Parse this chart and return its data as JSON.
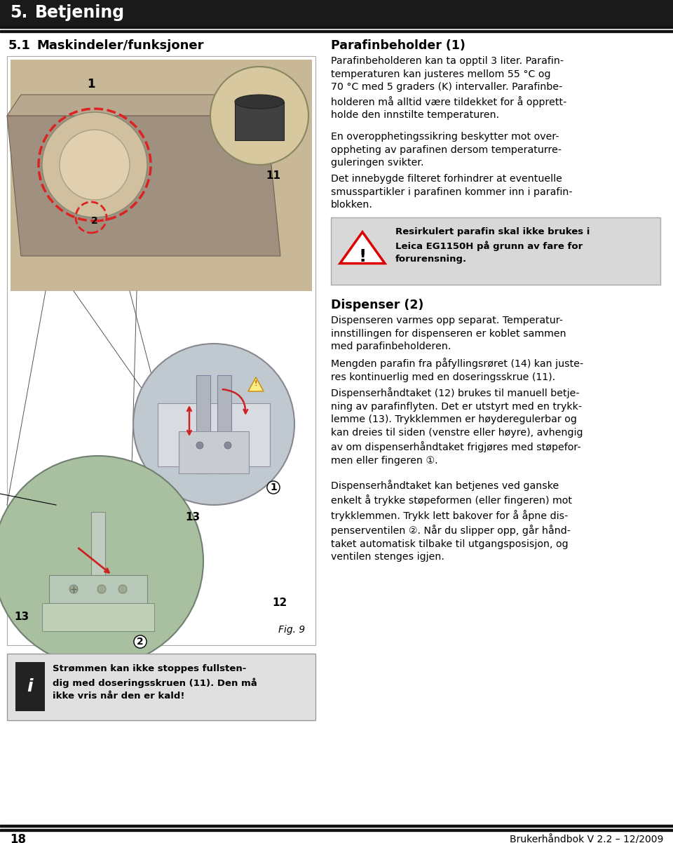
{
  "page_number": "18",
  "footer_right": "Brukerhåndbok V 2.2 – 12/2009",
  "chapter_number": "5.",
  "chapter_title": "Betjening",
  "section_number": "5.1",
  "section_title": "Maskindeler/funksjoner",
  "right_heading1": "Parafinbeholder (1)",
  "right_text1a": "Parafinbeholderen kan ta opptil 3 liter. Parafin-\ntemperaturen kan justeres mellom 55 °C og\n70 °C med 5 graders (K) intervaller. Parafinbe-\nholderen må alltid være tildekket for å opprett-\nholde den innstilte temperaturen.",
  "right_text1b": "En overopphetingssikring beskytter mot over-\noppheting av parafinen dersom temperaturre-\nguleringen svikter.",
  "right_text1c": "Det innebygde filteret forhindrer at eventuelle\nsmusspartikler i parafinen kommer inn i parafin-\nblokken.",
  "warning_text": "Resirkulert parafin skal ikke brukes i\nLeica EG1150H på grunn av fare for\nforurensning.",
  "right_heading2": "Dispenser (2)",
  "right_text2a": "Dispenseren varmes opp separat. Temperatur-\ninnstillingen for dispenseren er koblet sammen\nmed parafinbeholderen.",
  "right_text2b": "Mengden parafin fra påfyllingsrøret (14) kan juste-\nres kontinuerlig med en doseringsskrue (11).",
  "right_text2c": "Dispenserhåndtaket (12) brukes til manuell betje-\nning av parafinflyten. Det er utstyrt med en trykk-\nlemme (13). Trykklemmen er høyderegulerbar og\nkan dreies til siden (venstre eller høyre), avhengig\nav om dispenserhåndtaket frigjøres med støpefor-\nmen eller fingeren ①.",
  "right_text2d": "Dispenserhåndtaket kan betjenes ved ganske\nenkelt å trykke støpeformen (eller fingeren) mot\ntrykklemmen. Trykk lett bakover for å åpne dis-\npenserventilen ②. Når du slipper opp, går hånd-\ntaket automatisk tilbake til utgangsposisjon, og\nventilen stenges igjen.",
  "fig_label": "Fig. 9",
  "info_text": "Strømmen kan ikke stoppes fullsten-\ndig med doseringsskruen (11). Den må\nikke vris når den er kald!",
  "bg_color": "#ffffff",
  "header_bg": "#1a1a1a",
  "header_fg": "#ffffff",
  "text_color": "#000000",
  "warning_bg": "#d8d8d8",
  "info_bg": "#e0e0e0",
  "left_panel_bg": "#ffffff",
  "left_panel_border": "#cccccc",
  "photo_bg_top": "#8a7a6a",
  "photo_bg_mid": "#b0b8c0",
  "photo_bg_bot": "#90a890"
}
